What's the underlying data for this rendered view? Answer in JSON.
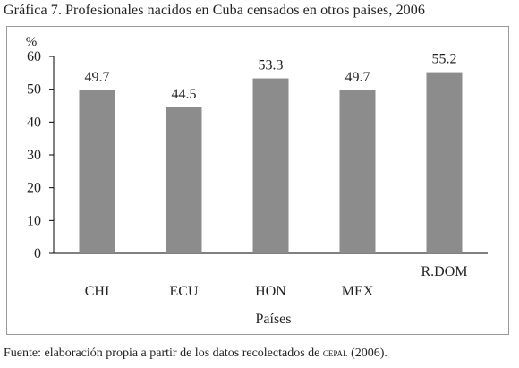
{
  "title": "Gráfica 7. Profesionales nacidos en Cuba censados en otros paises, 2006",
  "source": {
    "prefix": "Fuente: elaboración propia a partir de los datos recolectados de ",
    "org": "cepal",
    "suffix": " (2006)."
  },
  "colors": {
    "bar": "#8c8c8c",
    "frame": "#9a9a9a",
    "text": "#222222"
  },
  "chart_data": {
    "type": "bar",
    "title": "Gráfica 7. Profesionales nacidos en Cuba censados en otros paises, 2006",
    "xlabel": "Países",
    "ylabel": "%",
    "categories": [
      "CHI",
      "ECU",
      "HON",
      "MEX",
      "R.DOM"
    ],
    "values": [
      49.7,
      44.5,
      53.3,
      49.7,
      55.2
    ],
    "data_labels": [
      "49.7",
      "44.5",
      "53.3",
      "49.7",
      "55.2"
    ],
    "ylim": [
      0,
      60
    ],
    "yticks": [
      0,
      10,
      20,
      30,
      40,
      50,
      60
    ],
    "grid": false,
    "legend": "none"
  }
}
